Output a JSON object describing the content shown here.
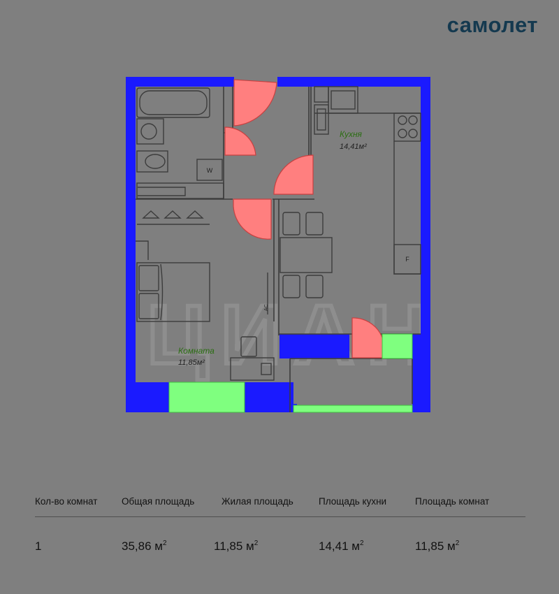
{
  "brand": {
    "logo_text": "самолет",
    "logo_color": "#14394f"
  },
  "colors": {
    "background": "#7f7f7f",
    "wall": "#1a1aff",
    "door": "#ff7f7f",
    "door_stroke": "#c84040",
    "window": "#7fff7f",
    "line": "#3c3c3c",
    "room_label": "#2b6e12",
    "watermark": "#909090"
  },
  "rooms": [
    {
      "name": "Кухня",
      "area": "14,41м²"
    },
    {
      "name": "Комната",
      "area": "11,85м²"
    }
  ],
  "fixtures": {
    "washer": "W",
    "fridge": "F",
    "ac": "AC"
  },
  "watermark": {
    "text": "ЦИАН"
  },
  "stats": [
    {
      "label": "Кол-во комнат",
      "value": "1",
      "unit": ""
    },
    {
      "label": "Общая площадь",
      "value": "35,86",
      "unit": "м"
    },
    {
      "label": "Жилая площадь",
      "value": "11,85",
      "unit": "м"
    },
    {
      "label": "Площадь кухни",
      "value": "14,41",
      "unit": "м"
    },
    {
      "label": "Площадь комнат",
      "value": "11,85",
      "unit": "м"
    }
  ],
  "unit_power": "2"
}
